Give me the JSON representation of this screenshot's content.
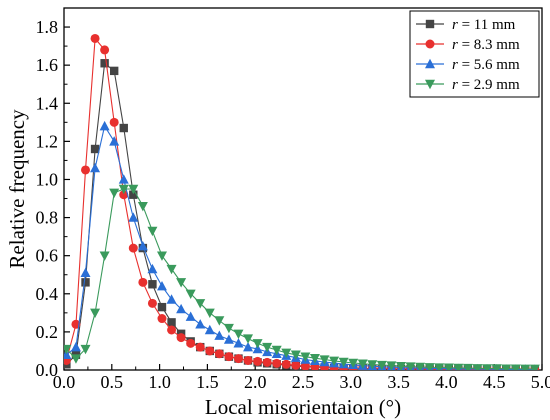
{
  "chart_data": {
    "type": "line",
    "xlabel": "Local misorientaion (°)",
    "ylabel": "Relative frequency",
    "xlim": [
      0,
      5
    ],
    "ylim": [
      0,
      1.9
    ],
    "xticks": [
      "0.0",
      "0.5",
      "1.0",
      "1.5",
      "2.0",
      "2.5",
      "3.0",
      "3.5",
      "4.0",
      "4.5",
      "5.0"
    ],
    "yticks": [
      "0.0",
      "0.2",
      "0.4",
      "0.6",
      "0.8",
      "1.0",
      "1.2",
      "1.4",
      "1.6",
      "1.8"
    ],
    "grid": false,
    "legend_position": "top-right",
    "series": [
      {
        "name": "r = 11 mm",
        "label_italic": "r",
        "label_rest": " = 11 mm",
        "color": "#444444",
        "marker": "square",
        "x": [
          0.025,
          0.125,
          0.225,
          0.325,
          0.425,
          0.525,
          0.625,
          0.725,
          0.825,
          0.925,
          1.025,
          1.125,
          1.225,
          1.325,
          1.425,
          1.525,
          1.625,
          1.725,
          1.825,
          1.925,
          2.025,
          2.125,
          2.225,
          2.325,
          2.425,
          2.525,
          2.625,
          2.725,
          2.825,
          2.925,
          3.025,
          3.125,
          3.225,
          3.325,
          3.425,
          3.525,
          3.625,
          3.725,
          3.825,
          3.925,
          4.025,
          4.125,
          4.225,
          4.325,
          4.425,
          4.525,
          4.625,
          4.725,
          4.825,
          4.925
        ],
        "y": [
          0.03,
          0.08,
          0.46,
          1.16,
          1.61,
          1.57,
          1.27,
          0.92,
          0.64,
          0.45,
          0.33,
          0.25,
          0.19,
          0.15,
          0.12,
          0.1,
          0.085,
          0.07,
          0.06,
          0.05,
          0.04,
          0.035,
          0.03,
          0.025,
          0.02,
          0.018,
          0.015,
          0.013,
          0.011,
          0.01,
          0.009,
          0.008,
          0.007,
          0.006,
          0.005,
          0.005,
          0.004,
          0.004,
          0.003,
          0.003,
          0.003,
          0.002,
          0.002,
          0.002,
          0.002,
          0.002,
          0.001,
          0.001,
          0.001,
          0.001
        ]
      },
      {
        "name": "r = 8.3 mm",
        "label_italic": "r",
        "label_rest": " = 8.3 mm",
        "color": "#e8302e",
        "marker": "circle",
        "x": [
          0.025,
          0.125,
          0.225,
          0.325,
          0.425,
          0.525,
          0.625,
          0.725,
          0.825,
          0.925,
          1.025,
          1.125,
          1.225,
          1.325,
          1.425,
          1.525,
          1.625,
          1.725,
          1.825,
          1.925,
          2.025,
          2.125,
          2.225,
          2.325,
          2.425,
          2.525,
          2.625,
          2.725,
          2.825,
          2.925,
          3.025,
          3.125,
          3.225,
          3.325,
          3.425,
          3.525,
          3.625,
          3.725,
          3.825,
          3.925,
          4.025,
          4.125,
          4.225,
          4.325,
          4.425,
          4.525,
          4.625,
          4.725,
          4.825,
          4.925
        ],
        "y": [
          0.05,
          0.24,
          1.05,
          1.74,
          1.68,
          1.3,
          0.92,
          0.64,
          0.46,
          0.35,
          0.27,
          0.21,
          0.17,
          0.14,
          0.12,
          0.1,
          0.085,
          0.07,
          0.06,
          0.05,
          0.045,
          0.04,
          0.035,
          0.03,
          0.025,
          0.02,
          0.018,
          0.015,
          0.013,
          0.011,
          0.01,
          0.009,
          0.008,
          0.007,
          0.006,
          0.005,
          0.005,
          0.004,
          0.004,
          0.003,
          0.003,
          0.003,
          0.002,
          0.002,
          0.002,
          0.002,
          0.001,
          0.001,
          0.001,
          0.001
        ]
      },
      {
        "name": "r = 5.6 mm",
        "label_italic": "r",
        "label_rest": " = 5.6 mm",
        "color": "#2a6fd6",
        "marker": "triangle-up",
        "x": [
          0.025,
          0.125,
          0.225,
          0.325,
          0.425,
          0.525,
          0.625,
          0.725,
          0.825,
          0.925,
          1.025,
          1.125,
          1.225,
          1.325,
          1.425,
          1.525,
          1.625,
          1.725,
          1.825,
          1.925,
          2.025,
          2.125,
          2.225,
          2.325,
          2.425,
          2.525,
          2.625,
          2.725,
          2.825,
          2.925,
          3.025,
          3.125,
          3.225,
          3.325,
          3.425,
          3.525,
          3.625,
          3.725,
          3.825,
          3.925,
          4.025,
          4.125,
          4.225,
          4.325,
          4.425,
          4.525,
          4.625,
          4.725,
          4.825,
          4.925
        ],
        "y": [
          0.08,
          0.12,
          0.51,
          1.06,
          1.28,
          1.2,
          1.0,
          0.8,
          0.65,
          0.53,
          0.44,
          0.37,
          0.32,
          0.28,
          0.24,
          0.21,
          0.18,
          0.16,
          0.14,
          0.12,
          0.11,
          0.095,
          0.085,
          0.075,
          0.065,
          0.055,
          0.048,
          0.042,
          0.036,
          0.031,
          0.027,
          0.023,
          0.02,
          0.017,
          0.015,
          0.013,
          0.011,
          0.01,
          0.009,
          0.008,
          0.007,
          0.006,
          0.005,
          0.005,
          0.004,
          0.004,
          0.003,
          0.003,
          0.003,
          0.002
        ]
      },
      {
        "name": "r = 2.9 mm",
        "label_italic": "r",
        "label_rest": " = 2.9 mm",
        "color": "#3a9a5c",
        "marker": "triangle-down",
        "x": [
          0.025,
          0.125,
          0.225,
          0.325,
          0.425,
          0.525,
          0.625,
          0.725,
          0.825,
          0.925,
          1.025,
          1.125,
          1.225,
          1.325,
          1.425,
          1.525,
          1.625,
          1.725,
          1.825,
          1.925,
          2.025,
          2.125,
          2.225,
          2.325,
          2.425,
          2.525,
          2.625,
          2.725,
          2.825,
          2.925,
          3.025,
          3.125,
          3.225,
          3.325,
          3.425,
          3.525,
          3.625,
          3.725,
          3.825,
          3.925,
          4.025,
          4.125,
          4.225,
          4.325,
          4.425,
          4.525,
          4.625,
          4.725,
          4.825,
          4.925
        ],
        "y": [
          0.11,
          0.06,
          0.11,
          0.3,
          0.6,
          0.93,
          0.95,
          0.95,
          0.86,
          0.73,
          0.6,
          0.53,
          0.46,
          0.4,
          0.35,
          0.3,
          0.26,
          0.22,
          0.19,
          0.165,
          0.14,
          0.12,
          0.105,
          0.09,
          0.08,
          0.07,
          0.062,
          0.055,
          0.048,
          0.042,
          0.037,
          0.033,
          0.029,
          0.026,
          0.023,
          0.02,
          0.018,
          0.016,
          0.014,
          0.013,
          0.012,
          0.011,
          0.01,
          0.009,
          0.008,
          0.008,
          0.007,
          0.007,
          0.006,
          0.006
        ]
      }
    ]
  }
}
